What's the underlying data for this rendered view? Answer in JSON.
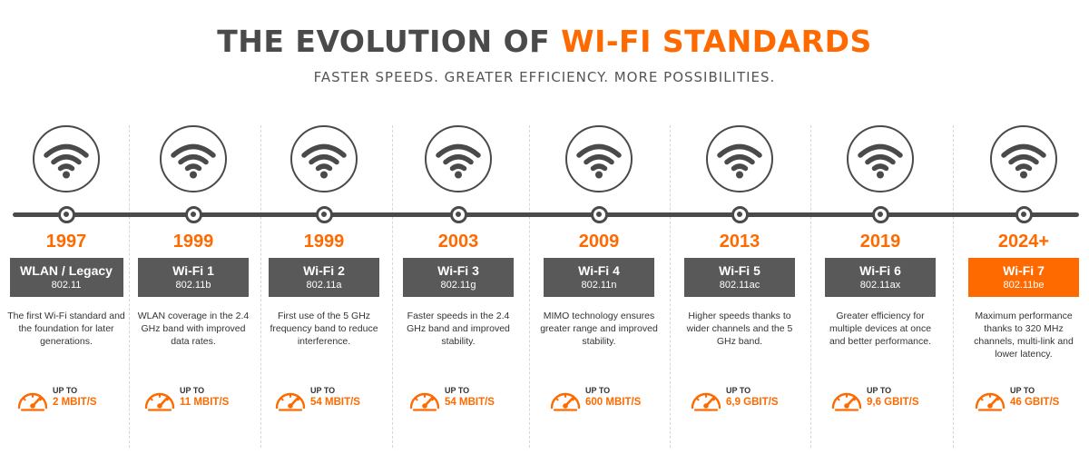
{
  "title": {
    "part1": "THE EVOLUTION OF ",
    "part2": "WI-FI STANDARDS"
  },
  "subtitle": "FASTER SPEEDS. GREATER EFFICIENCY. MORE POSSIBILITIES.",
  "colors": {
    "accent": "#ff6a00",
    "dark": "#4a4a4a",
    "box": "#595959"
  },
  "icons": {
    "standard": "wifi-icon",
    "speed": "speedometer-icon"
  },
  "speed_prefix": "UP TO",
  "standards": [
    {
      "year": "1997",
      "name": "WLAN / Legacy",
      "code": "802.11",
      "description": "The first Wi-Fi standard and the foundation for later generations.",
      "speed": "2 MBIT/S",
      "highlight": false
    },
    {
      "year": "1999",
      "name": "Wi-Fi 1",
      "code": "802.11b",
      "description": "WLAN coverage in the 2.4 GHz band with improved data rates.",
      "speed": "11 MBIT/S",
      "highlight": false
    },
    {
      "year": "1999",
      "name": "Wi-Fi 2",
      "code": "802.11a",
      "description": "First use of the 5 GHz frequency band to reduce interference.",
      "speed": "54 MBIT/S",
      "highlight": false
    },
    {
      "year": "2003",
      "name": "Wi-Fi 3",
      "code": "802.11g",
      "description": "Faster speeds in the 2.4 GHz band and improved stability.",
      "speed": "54 MBIT/S",
      "highlight": false
    },
    {
      "year": "2009",
      "name": "Wi-Fi 4",
      "code": "802.11n",
      "description": "MIMO technology ensures greater range and improved stability.",
      "speed": "600 MBIT/S",
      "highlight": false
    },
    {
      "year": "2013",
      "name": "Wi-Fi 5",
      "code": "802.11ac",
      "description": "Higher speeds thanks to wider channels and the 5 GHz band.",
      "speed": "6,9 GBIT/S",
      "highlight": false
    },
    {
      "year": "2019",
      "name": "Wi-Fi 6",
      "code": "802.11ax",
      "description": "Greater efficiency for multiple devices at once and better performance.",
      "speed": "9,6 GBIT/S",
      "highlight": false
    },
    {
      "year": "2024+",
      "name": "Wi-Fi 7",
      "code": "802.11be",
      "description": "Maximum performance thanks to 320 MHz channels, multi-link and lower latency.",
      "speed": "46 GBIT/S",
      "highlight": true
    }
  ]
}
